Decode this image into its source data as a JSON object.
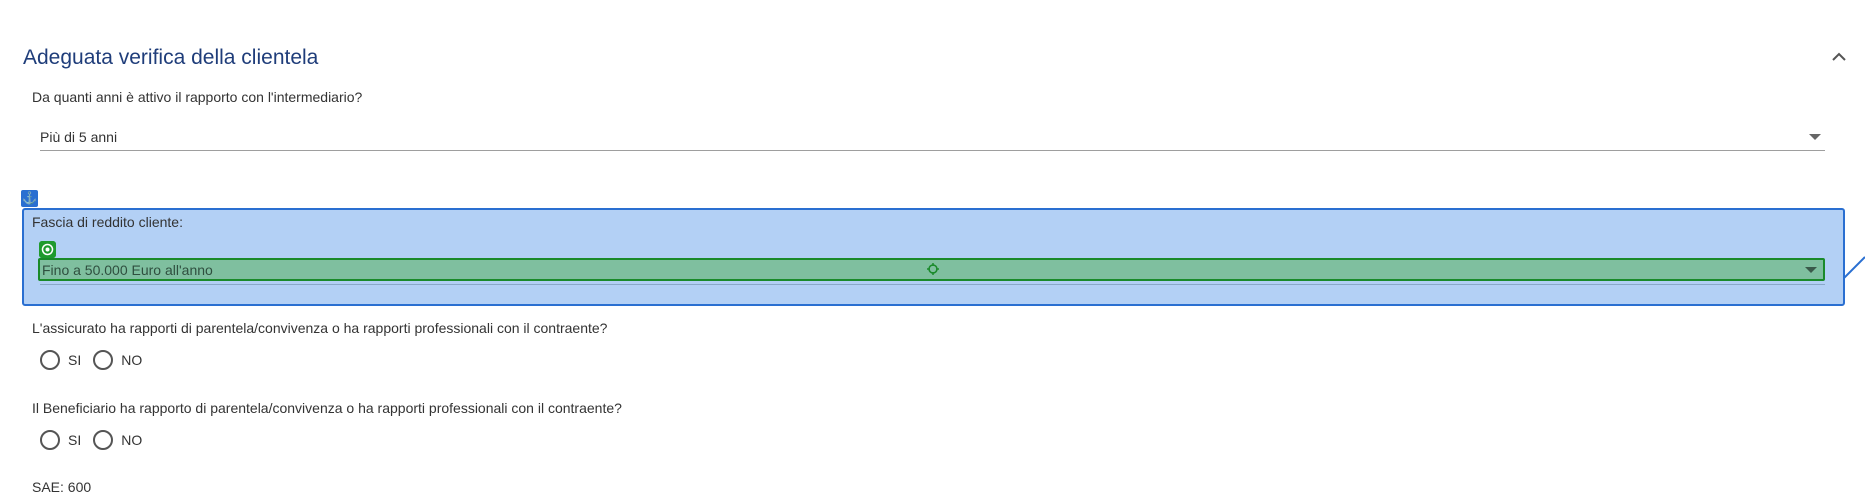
{
  "section": {
    "title": "Adeguata verifica della clientela"
  },
  "q1": {
    "label": "Da quanti anni è attivo il rapporto con l'intermediario?",
    "value": "Più di 5 anni"
  },
  "q2": {
    "label": "Fascia di reddito cliente:",
    "value": "Fino a 50.000 Euro all'anno"
  },
  "q3": {
    "label": "L'assicurato ha rapporti di parentela/convivenza o ha rapporti professionali con il contraente?",
    "options": [
      "SI",
      "NO"
    ]
  },
  "q4": {
    "label": "Il Beneficiario ha rapporto di parentela/convivenza o ha rapporti professionali con il contraente?",
    "options": [
      "SI",
      "NO"
    ]
  },
  "sae": {
    "label": "SAE: 600"
  },
  "icons": {
    "collapse": "chevron-up-icon",
    "anchor": "anchor-icon",
    "target": "target-icon",
    "crosshair": "crosshair-icon"
  },
  "colors": {
    "title": "#1f3d7a",
    "highlight_fill": "#b3d0f5",
    "highlight_border": "#2a6fd1",
    "selected_fill": "#7fbf9f",
    "selected_border": "#1a8a2a"
  }
}
